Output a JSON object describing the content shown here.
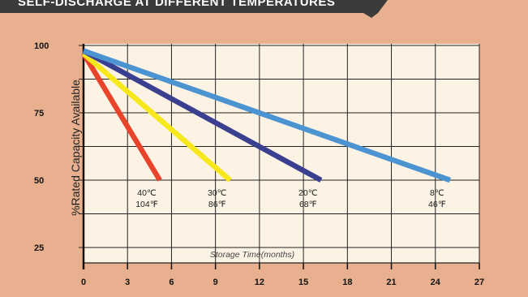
{
  "banner": {
    "title": "SELF-DISCHARGE AT DIFFERENT TEMPERATURES"
  },
  "colors": {
    "background": "#e8b08e",
    "plot_bg": "#fdf3e4",
    "banner_bg": "#3b3b3b"
  },
  "chart_data": {
    "type": "line",
    "title": "SELF-DISCHARGE AT DIFFERENT TEMPERATURES",
    "xlabel": "Storage Time(months)",
    "ylabel": "%Rated Capacity Available",
    "xlim": [
      0,
      27
    ],
    "ylim": [
      25,
      100
    ],
    "x_ticks": [
      0,
      3,
      6,
      9,
      12,
      15,
      18,
      21,
      24,
      27
    ],
    "y_ticks": [
      25,
      50,
      75,
      100
    ],
    "grid": true,
    "series": [
      {
        "name": "40℃ 104℉",
        "label_c": "40℃",
        "label_f": "104℉",
        "color": "#e8432b",
        "x": [
          0,
          5.2
        ],
        "y": [
          97,
          50
        ]
      },
      {
        "name": "30℃ 86℉",
        "label_c": "30℃",
        "label_f": "86℉",
        "color": "#f7e81c",
        "x": [
          0,
          10
        ],
        "y": [
          97,
          50
        ]
      },
      {
        "name": "20℃ 68℉",
        "label_c": "20℃",
        "label_f": "68℉",
        "color": "#3a3f8f",
        "x": [
          0,
          16.2
        ],
        "y": [
          98,
          50
        ]
      },
      {
        "name": "8℃ 46℉",
        "label_c": "8℃",
        "label_f": "46℉",
        "color": "#4b93d1",
        "x": [
          0,
          25
        ],
        "y": [
          98,
          50
        ]
      }
    ]
  }
}
